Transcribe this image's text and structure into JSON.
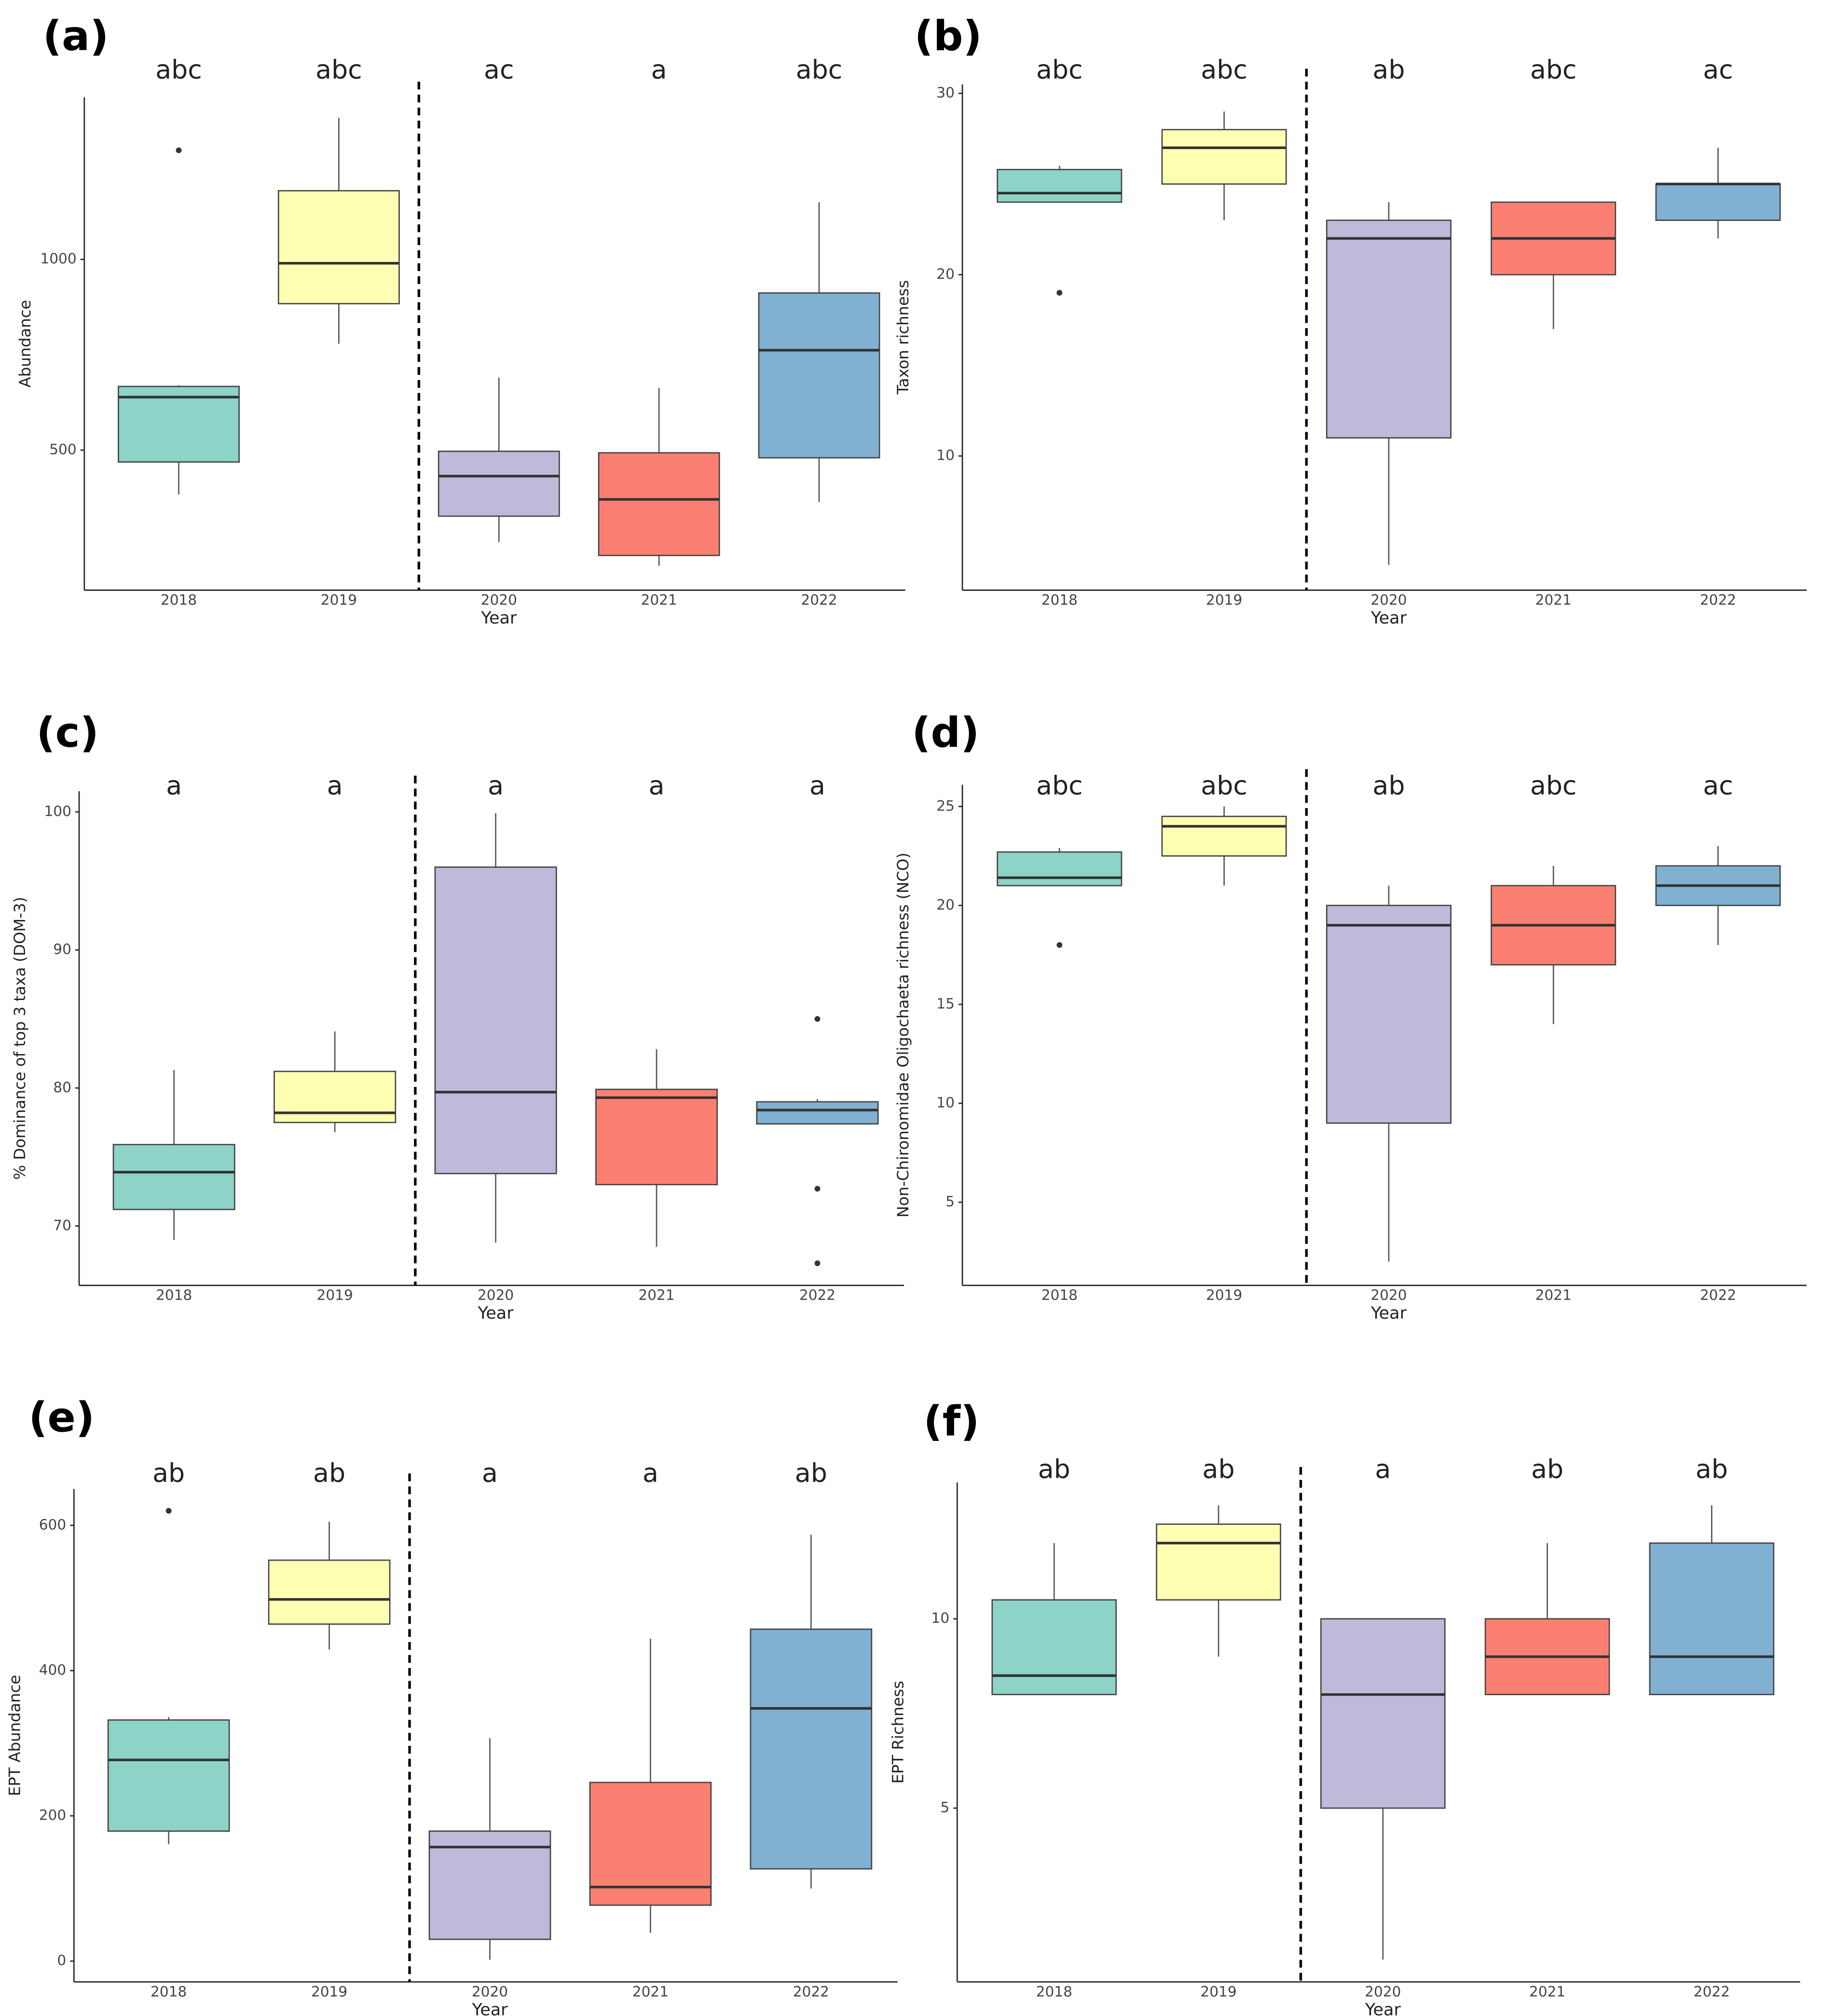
{
  "chart_data": [
    {
      "type": "box",
      "label": "(a)",
      "xlabel": "Year",
      "ylabel": "Abundance",
      "categories": [
        "2018",
        "2019",
        "2020",
        "2021",
        "2022"
      ],
      "colors": [
        "#8dd3c7",
        "#ffffb3",
        "#bebada",
        "#fb8072",
        "#80b1d3"
      ],
      "letters": [
        "abc",
        "abc",
        "ac",
        "a",
        "abc"
      ],
      "ylim": [
        133,
        1425
      ],
      "yticks": [
        500,
        1000
      ],
      "boxes": [
        {
          "low": 384,
          "q1": 469,
          "median": 639,
          "q3": 667,
          "high": 670,
          "outliers": [
            1286
          ]
        },
        {
          "low": 779,
          "q1": 884,
          "median": 990,
          "q3": 1180,
          "high": 1371
        },
        {
          "low": 259,
          "q1": 327,
          "median": 432,
          "q3": 497,
          "high": 690
        },
        {
          "low": 197,
          "q1": 224,
          "median": 371,
          "q3": 493,
          "high": 663
        },
        {
          "low": 364,
          "q1": 480,
          "median": 762,
          "q3": 912,
          "high": 1150
        }
      ]
    },
    {
      "type": "box",
      "label": "(b)",
      "xlabel": "Year",
      "ylabel": "Taxon richness",
      "categories": [
        "2018",
        "2019",
        "2020",
        "2021",
        "2022"
      ],
      "colors": [
        "#8dd3c7",
        "#ffffb3",
        "#bebada",
        "#fb8072",
        "#80b1d3"
      ],
      "letters": [
        "abc",
        "abc",
        "ab",
        "abc",
        "ac"
      ],
      "ylim": [
        2.6,
        30.5
      ],
      "yticks": [
        10,
        20,
        30
      ],
      "boxes": [
        {
          "low": 24,
          "q1": 24,
          "median": 24.5,
          "q3": 25.8,
          "high": 26,
          "outliers": [
            19
          ]
        },
        {
          "low": 23,
          "q1": 25,
          "median": 27,
          "q3": 28,
          "high": 29
        },
        {
          "low": 4,
          "q1": 11,
          "median": 22,
          "q3": 23,
          "high": 24
        },
        {
          "low": 17,
          "q1": 20,
          "median": 22,
          "q3": 24,
          "high": 24
        },
        {
          "low": 22,
          "q1": 23,
          "median": 25,
          "q3": 25,
          "high": 27
        }
      ]
    },
    {
      "type": "box",
      "label": "(c)",
      "xlabel": "Year",
      "ylabel": "% Dominance of top 3 taxa (DOM-3)",
      "categories": [
        "2018",
        "2019",
        "2020",
        "2021",
        "2022"
      ],
      "colors": [
        "#8dd3c7",
        "#ffffb3",
        "#bebada",
        "#fb8072",
        "#80b1d3"
      ],
      "letters": [
        "a",
        "a",
        "a",
        "a",
        "a"
      ],
      "ylim": [
        65.7,
        101.5
      ],
      "yticks": [
        70,
        80,
        90,
        100
      ],
      "boxes": [
        {
          "low": 69.0,
          "q1": 71.2,
          "median": 73.9,
          "q3": 75.9,
          "high": 81.3
        },
        {
          "low": 76.8,
          "q1": 77.5,
          "median": 78.2,
          "q3": 81.2,
          "high": 84.1
        },
        {
          "low": 68.8,
          "q1": 73.8,
          "median": 79.7,
          "q3": 96.0,
          "high": 99.9
        },
        {
          "low": 68.5,
          "q1": 73.0,
          "median": 79.3,
          "q3": 79.9,
          "high": 82.8
        },
        {
          "low": 77.4,
          "q1": 77.4,
          "median": 78.4,
          "q3": 79.0,
          "high": 79.2,
          "outliers": [
            85.0,
            72.7,
            67.3
          ]
        }
      ]
    },
    {
      "type": "box",
      "label": "(d)",
      "xlabel": "Year",
      "ylabel": "Non-Chironomidae Oligochaeta richness (NCO)",
      "categories": [
        "2018",
        "2019",
        "2020",
        "2021",
        "2022"
      ],
      "colors": [
        "#8dd3c7",
        "#ffffb3",
        "#bebada",
        "#fb8072",
        "#80b1d3"
      ],
      "letters": [
        "abc",
        "abc",
        "ab",
        "abc",
        "ac"
      ],
      "ylim": [
        0.8,
        26.1
      ],
      "yticks": [
        5,
        10,
        15,
        20,
        25
      ],
      "boxes": [
        {
          "low": 21.0,
          "q1": 21.0,
          "median": 21.4,
          "q3": 22.7,
          "high": 22.9,
          "outliers": [
            18
          ]
        },
        {
          "low": 21,
          "q1": 22.5,
          "median": 24,
          "q3": 24.5,
          "high": 25
        },
        {
          "low": 2,
          "q1": 9,
          "median": 19,
          "q3": 20,
          "high": 21
        },
        {
          "low": 14,
          "q1": 17,
          "median": 19,
          "q3": 21,
          "high": 22
        },
        {
          "low": 18,
          "q1": 20,
          "median": 21,
          "q3": 22,
          "high": 23
        }
      ]
    },
    {
      "type": "box",
      "label": "(e)",
      "xlabel": "Year",
      "ylabel": "EPT Abundance",
      "categories": [
        "2018",
        "2019",
        "2020",
        "2021",
        "2022"
      ],
      "colors": [
        "#8dd3c7",
        "#ffffb3",
        "#bebada",
        "#fb8072",
        "#80b1d3"
      ],
      "letters": [
        "ab",
        "ab",
        "a",
        "a",
        "ab"
      ],
      "ylim": [
        -28.6,
        650
      ],
      "yticks": [
        0,
        200,
        400,
        600
      ],
      "boxes": [
        {
          "low": 161,
          "q1": 179,
          "median": 277,
          "q3": 332,
          "high": 336,
          "outliers": [
            620
          ]
        },
        {
          "low": 429,
          "q1": 464,
          "median": 498,
          "q3": 552,
          "high": 605
        },
        {
          "low": 2,
          "q1": 30,
          "median": 157,
          "q3": 179,
          "high": 307
        },
        {
          "low": 39,
          "q1": 77,
          "median": 102,
          "q3": 246,
          "high": 444
        },
        {
          "low": 100,
          "q1": 127,
          "median": 348,
          "q3": 457,
          "high": 587
        }
      ]
    },
    {
      "type": "box",
      "label": "(f)",
      "xlabel": "Year",
      "ylabel": "EPT Richness",
      "categories": [
        "2018",
        "2019",
        "2020",
        "2021",
        "2022"
      ],
      "colors": [
        "#8dd3c7",
        "#ffffb3",
        "#bebada",
        "#fb8072",
        "#80b1d3"
      ],
      "letters": [
        "ab",
        "ab",
        "a",
        "ab",
        "ab"
      ],
      "ylim": [
        0.41,
        13.6
      ],
      "yticks": [
        5,
        10
      ],
      "boxes": [
        {
          "low": 8,
          "q1": 8,
          "median": 8.5,
          "q3": 10.5,
          "high": 12
        },
        {
          "low": 9,
          "q1": 10.5,
          "median": 12,
          "q3": 12.5,
          "high": 13
        },
        {
          "low": 1,
          "q1": 5,
          "median": 8,
          "q3": 10,
          "high": 10
        },
        {
          "low": 8,
          "q1": 8,
          "median": 9,
          "q3": 10,
          "high": 12
        },
        {
          "low": 8,
          "q1": 8,
          "median": 9,
          "q3": 12,
          "high": 13
        }
      ]
    }
  ]
}
